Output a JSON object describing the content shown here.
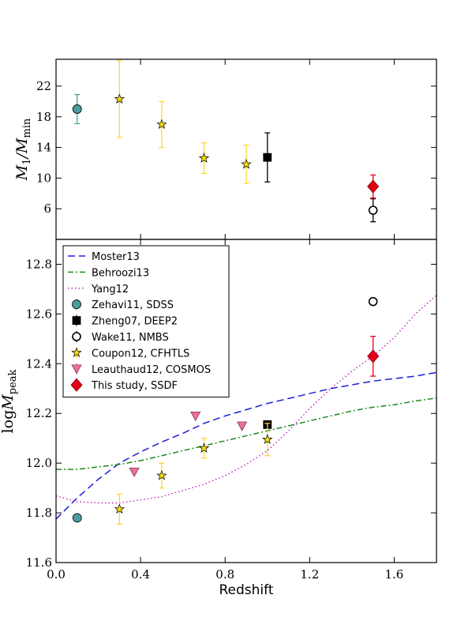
{
  "chart_data": [
    {
      "type": "scatter",
      "ylabel_main": "M",
      "ylabel_sub1": "1",
      "ylabel_mid": "/M",
      "ylabel_sub2": "min",
      "xlim": [
        0.0,
        1.8
      ],
      "ylim": [
        2.0,
        25.5
      ],
      "yticks": [
        {
          "value": 6,
          "label": "6"
        },
        {
          "value": 10,
          "label": "10"
        },
        {
          "value": 14,
          "label": "14"
        },
        {
          "value": 18,
          "label": "18"
        },
        {
          "value": 22,
          "label": "22"
        }
      ],
      "series": [
        {
          "name": "Zehavi11, SDSS",
          "marker": "circle",
          "color": "#4a9ea0",
          "points": [
            {
              "x": 0.1,
              "y": 19.0,
              "err": 1.9
            }
          ]
        },
        {
          "name": "Coupon12, CFHTLS",
          "marker": "star",
          "color": "#f5d80f",
          "ecolor": "#ffd82a",
          "points": [
            {
              "x": 0.3,
              "y": 20.3,
              "err": 5.0
            },
            {
              "x": 0.5,
              "y": 17.0,
              "err": 3.0
            },
            {
              "x": 0.7,
              "y": 12.6,
              "err": 2.0
            },
            {
              "x": 0.9,
              "y": 11.8,
              "err": 2.5
            }
          ]
        },
        {
          "name": "Zheng07, DEEP2",
          "marker": "square",
          "color": "#000000",
          "points": [
            {
              "x": 1.0,
              "y": 12.7,
              "err": 3.2
            }
          ]
        },
        {
          "name": "Wake11, NMBS",
          "marker": "open-circle",
          "color": "#000000",
          "points": [
            {
              "x": 1.5,
              "y": 5.8,
              "err": 1.5
            }
          ]
        },
        {
          "name": "This study, SSDF",
          "marker": "diamond",
          "color": "#e3001b",
          "points": [
            {
              "x": 1.5,
              "y": 8.9,
              "err": 1.5
            }
          ]
        }
      ]
    },
    {
      "type": "line",
      "xlabel": "Redshift",
      "ylabel_main": "log",
      "ylabel_var": "M",
      "ylabel_sub": "peak",
      "xlim": [
        0.0,
        1.8
      ],
      "ylim": [
        11.6,
        12.9
      ],
      "xticks": [
        {
          "value": 0.0,
          "label": "0.0"
        },
        {
          "value": 0.4,
          "label": "0.4"
        },
        {
          "value": 0.8,
          "label": "0.8"
        },
        {
          "value": 1.2,
          "label": "1.2"
        },
        {
          "value": 1.6,
          "label": "1.6"
        }
      ],
      "yticks": [
        {
          "value": 11.6,
          "label": "11.6"
        },
        {
          "value": 11.8,
          "label": "11.8"
        },
        {
          "value": 12.0,
          "label": "12.0"
        },
        {
          "value": 12.2,
          "label": "12.2"
        },
        {
          "value": 12.4,
          "label": "12.4"
        },
        {
          "value": 12.6,
          "label": "12.6"
        },
        {
          "value": 12.8,
          "label": "12.8"
        }
      ],
      "legend_position": "top-left",
      "lines": [
        {
          "name": "Moster13",
          "color": "#1f1fd6",
          "style": "dashed",
          "points": [
            [
              0.0,
              11.775
            ],
            [
              0.1,
              11.86
            ],
            [
              0.2,
              11.935
            ],
            [
              0.3,
              12.0
            ],
            [
              0.4,
              12.045
            ],
            [
              0.5,
              12.085
            ],
            [
              0.6,
              12.12
            ],
            [
              0.7,
              12.16
            ],
            [
              0.8,
              12.19
            ],
            [
              0.9,
              12.215
            ],
            [
              1.0,
              12.24
            ],
            [
              1.1,
              12.26
            ],
            [
              1.2,
              12.28
            ],
            [
              1.3,
              12.3
            ],
            [
              1.4,
              12.315
            ],
            [
              1.5,
              12.33
            ],
            [
              1.6,
              12.34
            ],
            [
              1.7,
              12.35
            ],
            [
              1.8,
              12.365
            ]
          ]
        },
        {
          "name": "Behroozi13",
          "color": "#1f8a1f",
          "style": "dashdot",
          "points": [
            [
              0.0,
              11.975
            ],
            [
              0.1,
              11.975
            ],
            [
              0.2,
              11.985
            ],
            [
              0.3,
              11.995
            ],
            [
              0.4,
              12.01
            ],
            [
              0.5,
              12.03
            ],
            [
              0.6,
              12.05
            ],
            [
              0.7,
              12.07
            ],
            [
              0.8,
              12.09
            ],
            [
              0.9,
              12.11
            ],
            [
              1.0,
              12.13
            ],
            [
              1.1,
              12.15
            ],
            [
              1.2,
              12.17
            ],
            [
              1.3,
              12.19
            ],
            [
              1.4,
              12.21
            ],
            [
              1.5,
              12.225
            ],
            [
              1.6,
              12.235
            ],
            [
              1.7,
              12.25
            ],
            [
              1.8,
              12.262
            ]
          ]
        },
        {
          "name": "Yang12",
          "color": "#c020c0",
          "style": "dotted",
          "points": [
            [
              0.0,
              11.868
            ],
            [
              0.1,
              11.845
            ],
            [
              0.2,
              11.84
            ],
            [
              0.3,
              11.84
            ],
            [
              0.4,
              11.852
            ],
            [
              0.5,
              11.865
            ],
            [
              0.6,
              11.89
            ],
            [
              0.7,
              11.915
            ],
            [
              0.8,
              11.95
            ],
            [
              0.9,
              11.995
            ],
            [
              1.0,
              12.05
            ],
            [
              1.1,
              12.13
            ],
            [
              1.2,
              12.22
            ],
            [
              1.3,
              12.3
            ],
            [
              1.4,
              12.37
            ],
            [
              1.5,
              12.43
            ],
            [
              1.6,
              12.505
            ],
            [
              1.7,
              12.6
            ],
            [
              1.8,
              12.675
            ]
          ]
        }
      ],
      "series": [
        {
          "name": "Zehavi11, SDSS",
          "marker": "circle",
          "color": "#4a9ea0",
          "points": [
            {
              "x": 0.1,
              "y": 11.78,
              "err": 0
            }
          ]
        },
        {
          "name": "Zheng07, DEEP2",
          "marker": "square",
          "color": "#000000",
          "points": [
            {
              "x": 1.0,
              "y": 12.155,
              "err": 0
            }
          ]
        },
        {
          "name": "Wake11, NMBS",
          "marker": "open-circle",
          "color": "#000000",
          "points": [
            {
              "x": 1.5,
              "y": 12.65,
              "err": 0
            }
          ]
        },
        {
          "name": "Coupon12, CFHTLS",
          "marker": "star",
          "color": "#f5d80f",
          "ecolor": "#ffd82a",
          "points": [
            {
              "x": 0.3,
              "y": 11.815,
              "err": 0.06
            },
            {
              "x": 0.5,
              "y": 11.95,
              "err": 0.05
            },
            {
              "x": 0.7,
              "y": 12.06,
              "err": 0.04
            },
            {
              "x": 1.0,
              "y": 12.095,
              "err": 0.065
            }
          ]
        },
        {
          "name": "Leauthaud12, COSMOS",
          "marker": "triangle-down",
          "color": "#e8709a",
          "points": [
            {
              "x": 0.37,
              "y": 11.965,
              "err": 0
            },
            {
              "x": 0.66,
              "y": 12.19,
              "err": 0
            },
            {
              "x": 0.88,
              "y": 12.15,
              "err": 0
            }
          ]
        },
        {
          "name": "This study, SSDF",
          "marker": "diamond",
          "color": "#e3001b",
          "points": [
            {
              "x": 1.5,
              "y": 12.43,
              "err": 0.08
            }
          ]
        }
      ],
      "legend": [
        {
          "label": "Moster13",
          "kind": "line",
          "color": "#1f1fd6",
          "style": "dashed"
        },
        {
          "label": "Behroozi13",
          "kind": "line",
          "color": "#1f8a1f",
          "style": "dashdot"
        },
        {
          "label": "Yang12",
          "kind": "line",
          "color": "#c020c0",
          "style": "dotted"
        },
        {
          "label": "Zehavi11, SDSS",
          "kind": "marker",
          "marker": "circle",
          "color": "#4a9ea0"
        },
        {
          "label": "Zheng07, DEEP2",
          "kind": "marker",
          "marker": "square",
          "color": "#000000"
        },
        {
          "label": "Wake11, NMBS",
          "kind": "marker",
          "marker": "open-circle",
          "color": "#000000"
        },
        {
          "label": "Coupon12, CFHTLS",
          "kind": "marker",
          "marker": "star",
          "color": "#f5d80f"
        },
        {
          "label": "Leauthaud12, COSMOS",
          "kind": "marker",
          "marker": "triangle-down",
          "color": "#e8709a"
        },
        {
          "label": "This study, SSDF",
          "kind": "marker",
          "marker": "diamond",
          "color": "#e3001b"
        }
      ]
    }
  ]
}
